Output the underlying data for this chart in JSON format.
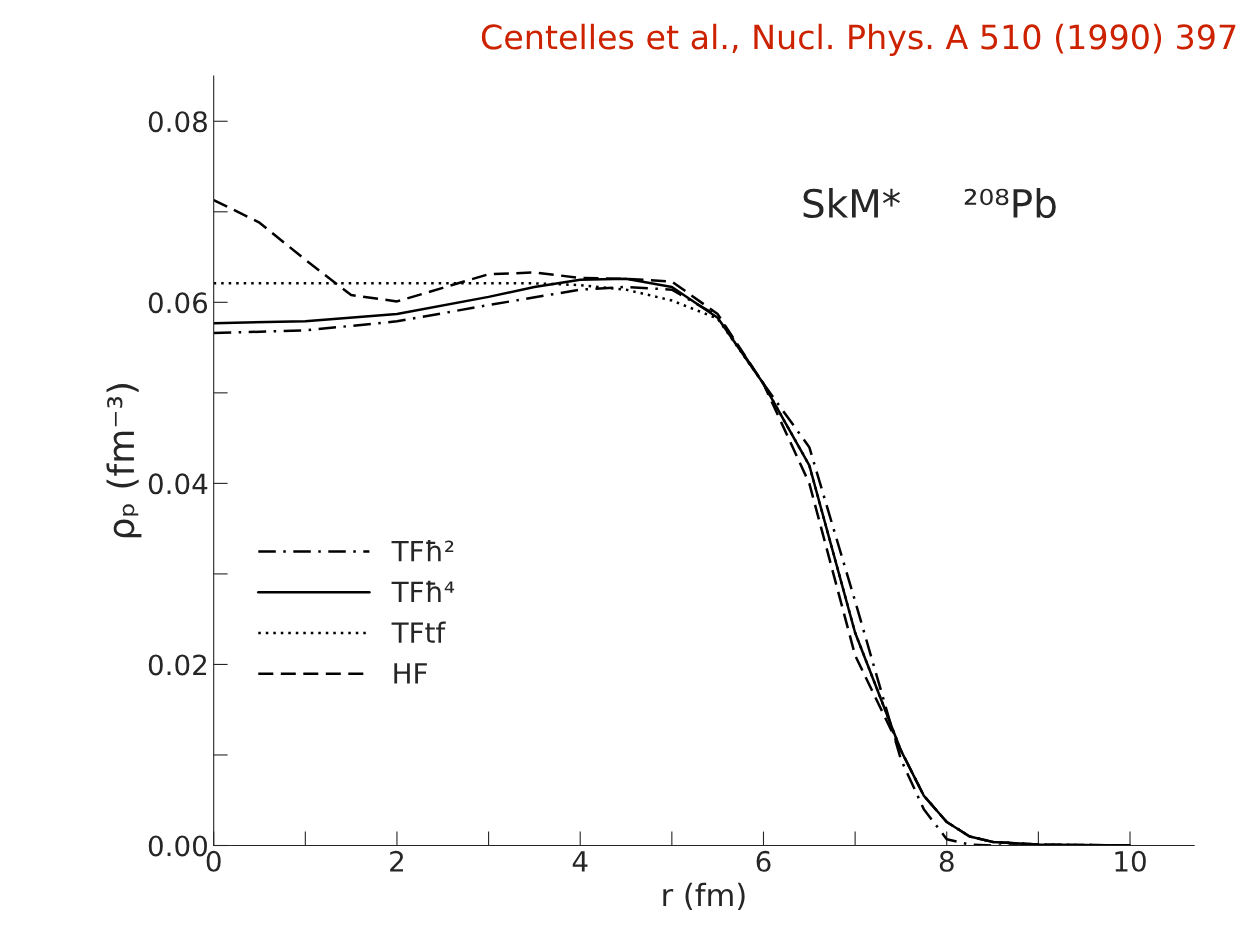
{
  "chart_data": {
    "type": "line",
    "xlabel": "r (fm)",
    "ylabel": "ρₚ (fm⁻³)",
    "annotations": [
      "SkM*     ²⁰⁸Pb",
      "Centelles et al., Nucl. Phys. A 510 (1990) 397"
    ],
    "xlim": [
      0,
      10.7
    ],
    "ylim": [
      0,
      0.085
    ],
    "xticks": [
      0,
      {
        "value": 1,
        "label": null
      },
      2,
      {
        "value": 3,
        "label": null
      },
      4,
      {
        "value": 5,
        "label": null
      },
      6,
      {
        "value": 7,
        "label": null
      },
      8,
      {
        "value": 9,
        "label": null
      },
      10
    ],
    "yticks": [
      {
        "value": 0,
        "label": "0.00"
      },
      {
        "value": 0.01,
        "label": null
      },
      {
        "value": 0.02,
        "label": "0.02"
      },
      {
        "value": 0.03,
        "label": null
      },
      {
        "value": 0.04,
        "label": "0.04"
      },
      {
        "value": 0.05,
        "label": null
      },
      {
        "value": 0.06,
        "label": "0.06"
      },
      {
        "value": 0.07,
        "label": null
      },
      {
        "value": 0.08,
        "label": "0.08"
      }
    ],
    "grid": false,
    "legend": "left",
    "marker": "none",
    "series": [
      {
        "name": "TFħ²",
        "color": "#000000",
        "line_style": "dashdot",
        "x": [
          0,
          1,
          2,
          3,
          4,
          4.5,
          5,
          5.5,
          6,
          6.5,
          7,
          7.5,
          7.75,
          8,
          8.25,
          8.5,
          9,
          10
        ],
        "values": [
          0.0566,
          0.0569,
          0.0579,
          0.0597,
          0.0614,
          0.0617,
          0.0614,
          0.0585,
          0.051,
          0.044,
          0.027,
          0.0095,
          0.004,
          0.0007,
          0.0001,
          0,
          0,
          0
        ]
      },
      {
        "name": "TFħ⁴",
        "color": "#000000",
        "line_style": "solid",
        "x": [
          0,
          1,
          2,
          3,
          3.5,
          4,
          4.5,
          5,
          5.5,
          6,
          6.5,
          7,
          7.5,
          7.75,
          8,
          8.25,
          8.5,
          9,
          10
        ],
        "values": [
          0.0577,
          0.0579,
          0.0587,
          0.0606,
          0.0617,
          0.0625,
          0.0626,
          0.0617,
          0.0583,
          0.051,
          0.042,
          0.0235,
          0.0105,
          0.0055,
          0.0026,
          0.001,
          0.0004,
          0.0001,
          0
        ]
      },
      {
        "name": "TFtf",
        "color": "#000000",
        "line_style": "dotted",
        "x": [
          0,
          1,
          2,
          3,
          3.5,
          4,
          4.5,
          5,
          5.5,
          6,
          6.5,
          7,
          7.5,
          7.75,
          8,
          8.25,
          8.5,
          9,
          10
        ],
        "values": [
          0.0621,
          0.0621,
          0.0621,
          0.0621,
          0.0621,
          0.0619,
          0.0614,
          0.0602,
          0.0582,
          0.051,
          0.042,
          0.0235,
          0.0105,
          0.0055,
          0.0026,
          0.001,
          0.0004,
          0.0001,
          0
        ]
      },
      {
        "name": "HF",
        "color": "#000000",
        "line_style": "dashed",
        "x": [
          0,
          0.5,
          1,
          1.5,
          2,
          2.5,
          3,
          3.5,
          4,
          4.5,
          5,
          5.5,
          6,
          6.5,
          7,
          7.5,
          7.75,
          8,
          8.25,
          8.5,
          9,
          10
        ],
        "values": [
          0.0713,
          0.0688,
          0.0647,
          0.0608,
          0.0601,
          0.0616,
          0.0631,
          0.0633,
          0.0627,
          0.0626,
          0.0623,
          0.0587,
          0.051,
          0.04,
          0.021,
          0.0105,
          0.0055,
          0.0026,
          0.001,
          0.0004,
          0.0001,
          0
        ]
      }
    ]
  }
}
